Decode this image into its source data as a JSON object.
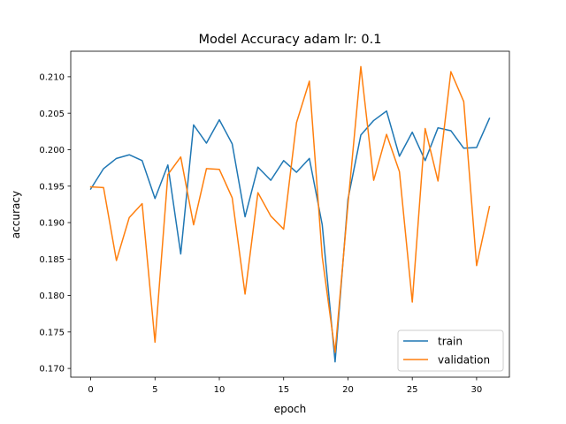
{
  "chart_data": {
    "type": "line",
    "title": "Model Accuracy adam lr: 0.1",
    "xlabel": "epoch",
    "ylabel": "accuracy",
    "xlim": [
      -1.55,
      32.55
    ],
    "ylim": [
      0.1688,
      0.2135
    ],
    "xticks": [
      0,
      5,
      10,
      15,
      20,
      25,
      30
    ],
    "yticks": [
      0.17,
      0.175,
      0.18,
      0.185,
      0.19,
      0.195,
      0.2,
      0.205,
      0.21
    ],
    "ytick_labels": [
      "0.170",
      "0.175",
      "0.180",
      "0.185",
      "0.190",
      "0.195",
      "0.200",
      "0.205",
      "0.210"
    ],
    "grid": false,
    "legend_position": "lower-right",
    "x": [
      0,
      1,
      2,
      3,
      4,
      5,
      6,
      7,
      8,
      9,
      10,
      11,
      12,
      13,
      14,
      15,
      16,
      17,
      18,
      19,
      20,
      21,
      22,
      23,
      24,
      25,
      26,
      27,
      28,
      29,
      30,
      31
    ],
    "series": [
      {
        "name": "train",
        "color": "#1f77b4",
        "values": [
          0.1946,
          0.1974,
          0.1988,
          0.1993,
          0.1985,
          0.1933,
          0.1979,
          0.1857,
          0.2034,
          0.2009,
          0.2041,
          0.2008,
          0.1908,
          0.1976,
          0.1958,
          0.1985,
          0.1969,
          0.1988,
          0.1897,
          0.1709,
          0.1932,
          0.202,
          0.204,
          0.2053,
          0.1991,
          0.2024,
          0.1985,
          0.203,
          0.2026,
          0.2002,
          0.2003,
          0.2043
        ]
      },
      {
        "name": "validation",
        "color": "#ff7f0e",
        "values": [
          0.1949,
          0.1948,
          0.1848,
          0.1907,
          0.1926,
          0.1736,
          0.1966,
          0.199,
          0.1897,
          0.1974,
          0.1973,
          0.1934,
          0.1802,
          0.1941,
          0.1909,
          0.1891,
          0.2037,
          0.2094,
          0.1853,
          0.1722,
          0.1925,
          0.2114,
          0.1958,
          0.2021,
          0.197,
          0.1791,
          0.2029,
          0.1957,
          0.2107,
          0.2066,
          0.1841,
          0.1922
        ]
      }
    ]
  }
}
